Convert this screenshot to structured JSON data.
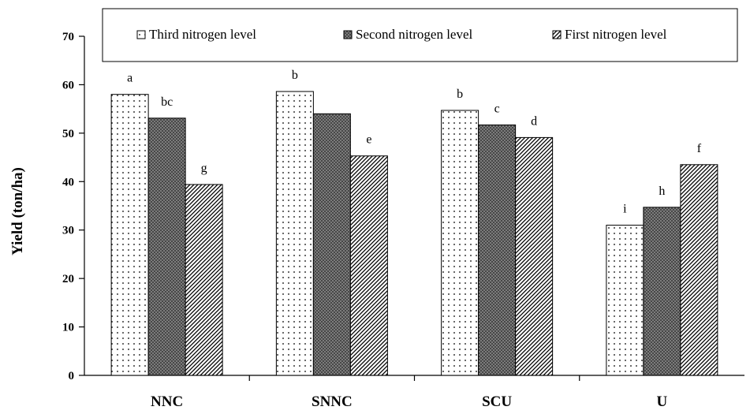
{
  "chart_data": {
    "type": "bar",
    "categories": [
      "NNC",
      "SNNC",
      "SCU",
      "U"
    ],
    "series": [
      {
        "name": "Third nitrogen level",
        "values": [
          58,
          58.6,
          54.7,
          31
        ],
        "labels": [
          "a",
          "b",
          "b",
          "i"
        ],
        "pattern": "dots"
      },
      {
        "name": "Second nitrogen level",
        "values": [
          53.1,
          54,
          51.7,
          34.7
        ],
        "labels": [
          "bc",
          "",
          "c",
          "h"
        ],
        "pattern": "crosshatch"
      },
      {
        "name": "First nitrogen level",
        "values": [
          39.4,
          45.3,
          49.1,
          43.5
        ],
        "labels": [
          "g",
          "e",
          "d",
          "f"
        ],
        "pattern": "diagonal"
      }
    ],
    "title": "",
    "xlabel": "",
    "ylabel": "Yield (ton/ha)",
    "ylim": [
      0,
      70
    ],
    "yticks": [
      0,
      10,
      20,
      30,
      40,
      50,
      60,
      70
    ],
    "legend_position": "top",
    "grid": false
  }
}
